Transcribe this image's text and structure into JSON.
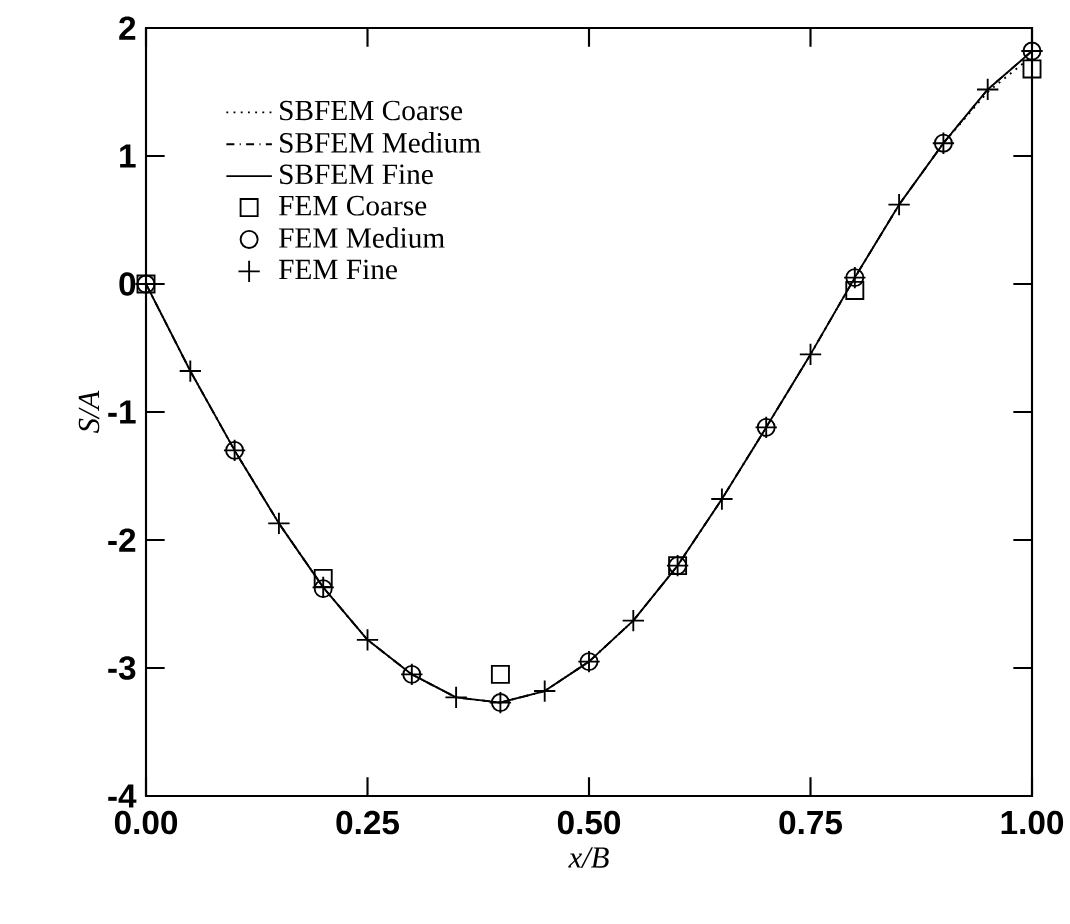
{
  "chart_data": {
    "type": "line",
    "xlabel": "x/B",
    "ylabel": "S/A",
    "xlim": [
      0,
      1
    ],
    "ylim": [
      -4,
      2
    ],
    "xticks": [
      {
        "value": 0,
        "label": "0.00"
      },
      {
        "value": 0.25,
        "label": "0.25"
      },
      {
        "value": 0.5,
        "label": "0.50"
      },
      {
        "value": 0.75,
        "label": "0.75"
      },
      {
        "value": 1,
        "label": "1.00"
      }
    ],
    "yticks": [
      -4,
      -3,
      -2,
      -1,
      0,
      1,
      2
    ],
    "grid": false,
    "legend": "top left",
    "series": [
      {
        "name": "SBFEM Coarse",
        "color": "#000000",
        "line_style": "dotted",
        "marker": "none",
        "x": [
          0,
          0.05,
          0.1,
          0.15,
          0.2,
          0.25,
          0.3,
          0.35,
          0.4,
          0.45,
          0.5,
          0.55,
          0.6,
          0.65,
          0.7,
          0.75,
          0.8,
          0.85,
          0.9,
          0.95,
          1
        ],
        "values": [
          0,
          -0.68,
          -1.3,
          -1.87,
          -2.37,
          -2.78,
          -3.05,
          -3.23,
          -3.27,
          -3.18,
          -2.95,
          -2.63,
          -2.2,
          -1.68,
          -1.12,
          -0.55,
          0.05,
          0.62,
          1.1,
          1.5,
          1.78
        ]
      },
      {
        "name": "SBFEM Medium",
        "color": "#000000",
        "line_style": "dashdot",
        "marker": "none",
        "x": [
          0,
          0.05,
          0.1,
          0.15,
          0.2,
          0.25,
          0.3,
          0.35,
          0.4,
          0.45,
          0.5,
          0.55,
          0.6,
          0.65,
          0.7,
          0.75,
          0.8,
          0.85,
          0.9,
          0.95,
          1
        ],
        "values": [
          0,
          -0.68,
          -1.3,
          -1.87,
          -2.37,
          -2.78,
          -3.05,
          -3.23,
          -3.27,
          -3.18,
          -2.95,
          -2.63,
          -2.2,
          -1.68,
          -1.12,
          -0.55,
          0.05,
          0.62,
          1.1,
          1.52,
          1.82
        ]
      },
      {
        "name": "SBFEM Fine",
        "color": "#000000",
        "line_style": "solid",
        "marker": "none",
        "x": [
          0,
          0.05,
          0.1,
          0.15,
          0.2,
          0.25,
          0.3,
          0.35,
          0.4,
          0.45,
          0.5,
          0.55,
          0.6,
          0.65,
          0.7,
          0.75,
          0.8,
          0.85,
          0.9,
          0.95,
          1
        ],
        "values": [
          0,
          -0.68,
          -1.3,
          -1.87,
          -2.37,
          -2.78,
          -3.05,
          -3.23,
          -3.27,
          -3.18,
          -2.95,
          -2.63,
          -2.2,
          -1.68,
          -1.12,
          -0.55,
          0.05,
          0.62,
          1.1,
          1.52,
          1.82
        ]
      },
      {
        "name": "FEM Coarse",
        "type": "scatter",
        "color": "#000000",
        "marker": "square",
        "x": [
          0,
          0.2,
          0.4,
          0.6,
          0.8,
          1
        ],
        "values": [
          0,
          -2.3,
          -3.05,
          -2.2,
          -0.05,
          1.68
        ]
      },
      {
        "name": "FEM Medium",
        "type": "scatter",
        "color": "#000000",
        "marker": "circle",
        "x": [
          0,
          0.1,
          0.2,
          0.3,
          0.4,
          0.5,
          0.6,
          0.7,
          0.8,
          0.9,
          1
        ],
        "values": [
          0,
          -1.3,
          -2.38,
          -3.05,
          -3.27,
          -2.95,
          -2.2,
          -1.12,
          0.05,
          1.1,
          1.82
        ]
      },
      {
        "name": "FEM Fine",
        "type": "scatter",
        "color": "#000000",
        "marker": "cross",
        "x": [
          0,
          0.05,
          0.1,
          0.15,
          0.2,
          0.25,
          0.3,
          0.35,
          0.4,
          0.45,
          0.5,
          0.55,
          0.6,
          0.65,
          0.7,
          0.75,
          0.8,
          0.85,
          0.9,
          0.95,
          1
        ],
        "values": [
          0,
          -0.68,
          -1.3,
          -1.87,
          -2.37,
          -2.78,
          -3.05,
          -3.23,
          -3.27,
          -3.18,
          -2.95,
          -2.63,
          -2.2,
          -1.68,
          -1.12,
          -0.55,
          0.05,
          0.62,
          1.1,
          1.52,
          1.82
        ]
      }
    ]
  }
}
